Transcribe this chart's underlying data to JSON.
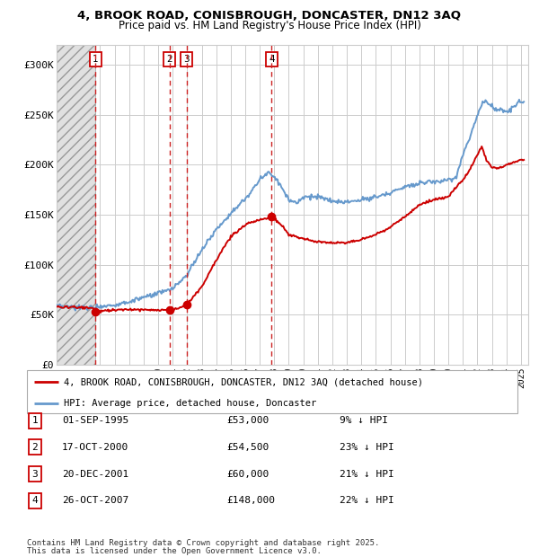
{
  "title1": "4, BROOK ROAD, CONISBROUGH, DONCASTER, DN12 3AQ",
  "title2": "Price paid vs. HM Land Registry's House Price Index (HPI)",
  "ylabel_ticks": [
    "£0",
    "£50K",
    "£100K",
    "£150K",
    "£200K",
    "£250K",
    "£300K"
  ],
  "ytick_values": [
    0,
    50000,
    100000,
    150000,
    200000,
    250000,
    300000
  ],
  "ylim": [
    0,
    320000
  ],
  "xlim_start": 1993.0,
  "xlim_end": 2025.5,
  "hatch_end_year": 1995.67,
  "purchases": [
    {
      "num": 1,
      "date": "01-SEP-1995",
      "year": 1995.67,
      "price": 53000,
      "pct": "9%",
      "dir": "↓"
    },
    {
      "num": 2,
      "date": "17-OCT-2000",
      "year": 2000.79,
      "price": 54500,
      "pct": "23%",
      "dir": "↓"
    },
    {
      "num": 3,
      "date": "20-DEC-2001",
      "year": 2001.96,
      "price": 60000,
      "pct": "21%",
      "dir": "↓"
    },
    {
      "num": 4,
      "date": "26-OCT-2007",
      "year": 2007.82,
      "price": 148000,
      "pct": "22%",
      "dir": "↓"
    }
  ],
  "legend_line1": "4, BROOK ROAD, CONISBROUGH, DONCASTER, DN12 3AQ (detached house)",
  "legend_line2": "HPI: Average price, detached house, Doncaster",
  "footnote1": "Contains HM Land Registry data © Crown copyright and database right 2025.",
  "footnote2": "This data is licensed under the Open Government Licence v3.0.",
  "hpi_color": "#6699cc",
  "price_color": "#cc0000",
  "dashed_color": "#cc2222",
  "background_color": "#ffffff",
  "grid_color": "#cccccc",
  "hatch_face_color": "#e0e0e0"
}
